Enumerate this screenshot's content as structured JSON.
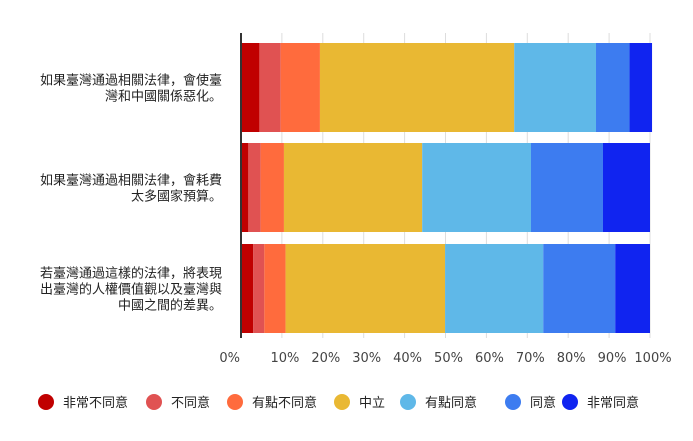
{
  "chart_data": {
    "type": "bar",
    "orientation": "horizontal",
    "stacked": true,
    "categories": [
      [
        "如果臺灣通過相關法律，會使臺",
        "灣和中國關係惡化。"
      ],
      [
        "如果臺灣通過相關法律，會耗費",
        "太多國家預算。"
      ],
      [
        "若臺灣通過這樣的法律，將表現",
        "出臺灣的人權價值觀以及臺灣與",
        "中國之間的差異。"
      ]
    ],
    "series": [
      {
        "name": "非常不同意",
        "color": "#c00000",
        "values": [
          4.5,
          1.8,
          3.0
        ]
      },
      {
        "name": "不同意",
        "color": "#e05252",
        "values": [
          5.2,
          3.0,
          2.7
        ]
      },
      {
        "name": "有點不同意",
        "color": "#ff6b3d",
        "values": [
          9.6,
          5.7,
          5.2
        ]
      },
      {
        "name": "中立",
        "color": "#e9b833",
        "values": [
          47.5,
          33.8,
          39.0
        ]
      },
      {
        "name": "有點同意",
        "color": "#5fb8e8",
        "values": [
          20.0,
          26.6,
          24.0
        ]
      },
      {
        "name": "同意",
        "color": "#3d7cf0",
        "values": [
          8.2,
          17.6,
          17.6
        ]
      },
      {
        "name": "非常同意",
        "color": "#1024f0",
        "values": [
          5.5,
          11.5,
          8.5
        ]
      }
    ],
    "x_ticks": [
      "0%",
      "10%",
      "20%",
      "30%",
      "40%",
      "50%",
      "60%",
      "70%",
      "80%",
      "90%",
      "100%"
    ],
    "xlim": [
      0,
      100
    ],
    "grid": true,
    "legend_position": "bottom"
  }
}
